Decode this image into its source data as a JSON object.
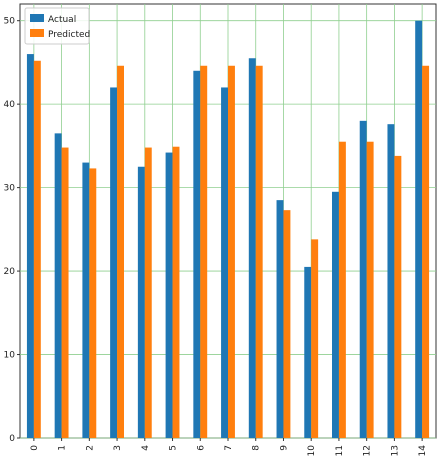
{
  "chart_data": {
    "type": "bar",
    "categories": [
      "0",
      "1",
      "2",
      "3",
      "4",
      "5",
      "6",
      "7",
      "8",
      "9",
      "10",
      "11",
      "12",
      "13",
      "14"
    ],
    "series": [
      {
        "name": "Actual",
        "color": "#1f77b4",
        "values": [
          46.0,
          36.5,
          33.0,
          42.0,
          32.5,
          34.2,
          44.0,
          42.0,
          45.5,
          28.5,
          20.5,
          29.5,
          38.0,
          37.6,
          50.0
        ]
      },
      {
        "name": "Predicted",
        "color": "#ff7f0e",
        "values": [
          45.2,
          34.8,
          32.3,
          44.6,
          34.8,
          34.9,
          44.6,
          44.6,
          44.6,
          27.3,
          23.8,
          35.5,
          35.5,
          33.8,
          44.6
        ]
      }
    ],
    "ylim": [
      0,
      52
    ],
    "yticks": [
      0,
      10,
      20,
      30,
      40,
      50
    ],
    "grid": true,
    "grid_color": "#8fcf8f",
    "legend_position": "top-left",
    "xtick_rotation": -90
  }
}
